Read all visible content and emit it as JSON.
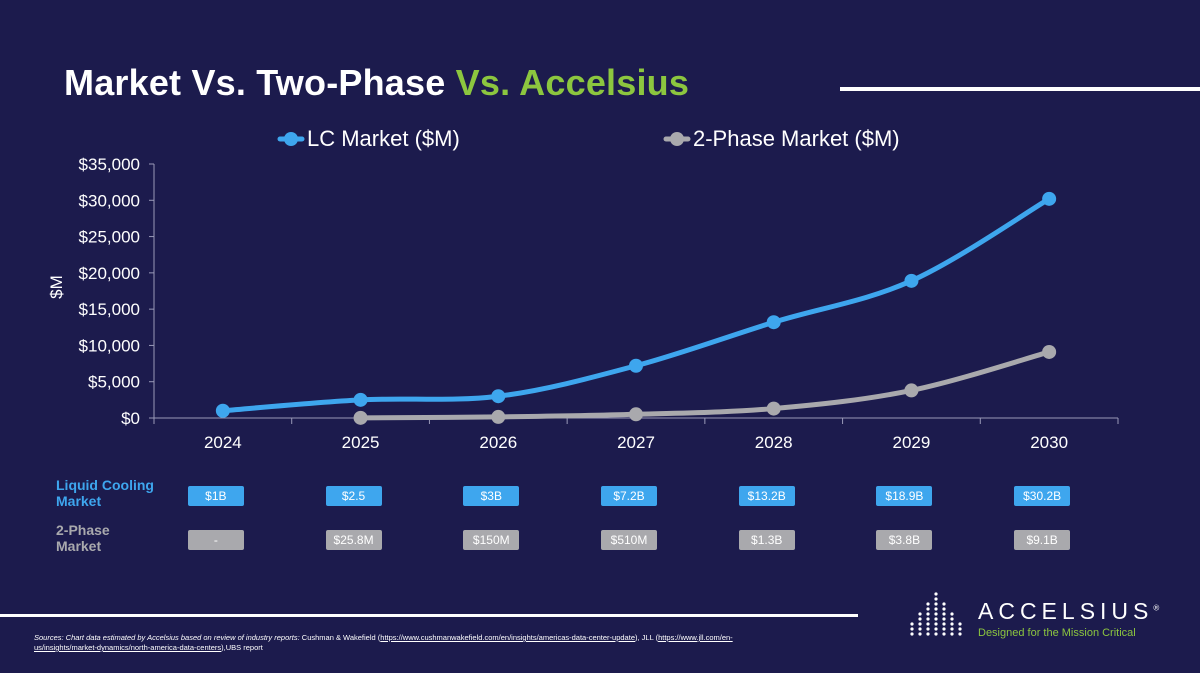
{
  "title": {
    "part1": "Market Vs. Two-Phase ",
    "part2": "Vs. Accelsius"
  },
  "colors": {
    "lc": "#3ea6ee",
    "two_phase": "#a9a9ad",
    "accent": "#8cc63f",
    "background": "#1c1b4d"
  },
  "chart_data": {
    "type": "line",
    "categories": [
      "2024",
      "2025",
      "2026",
      "2027",
      "2028",
      "2029",
      "2030"
    ],
    "series": [
      {
        "name": "LC Market ($M)",
        "values": [
          1000,
          2500,
          3000,
          7200,
          13200,
          18900,
          30200
        ]
      },
      {
        "name": "2-Phase Market ($M)",
        "values": [
          null,
          25.8,
          150,
          510,
          1300,
          3800,
          9100
        ]
      }
    ],
    "ylabel": "$M",
    "ylim": [
      0,
      35000
    ],
    "yticks": [
      "$0",
      "$5,000",
      "$10,000",
      "$15,000",
      "$20,000",
      "$25,000",
      "$30,000",
      "$35,000"
    ],
    "legend_position": "top",
    "grid": false
  },
  "table": {
    "rows": [
      {
        "label_line1": "Liquid Cooling",
        "label_line2": "Market",
        "cells": [
          "$1B",
          "$2.5",
          "$3B",
          "$7.2B",
          "$13.2B",
          "$18.9B",
          "$30.2B"
        ]
      },
      {
        "label_line1": "2-Phase",
        "label_line2": "Market",
        "cells": [
          "-",
          "$25.8M",
          "$150M",
          "$510M",
          "$1.3B",
          "$3.8B",
          "$9.1B"
        ]
      }
    ]
  },
  "logo": {
    "word": "ACCELSIUS",
    "registered": "®",
    "tagline": "Designed for the Mission Critical"
  },
  "sources": {
    "lead": "Sources: Chart data estimated by Accelsius based on review of industry reports:",
    "text1": " Cushman & Wakefield (",
    "link1": "https://www.cushmanwakefield.com/en/insights/americas-data-center-update",
    "text2": "), JLL (",
    "link2": "https://www.jll.com/en-us/insights/market-dynamics/north-america-data-centers",
    "text3": "),UBS report"
  }
}
